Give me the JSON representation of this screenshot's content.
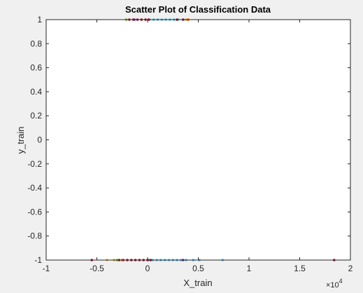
{
  "chart_data": {
    "type": "scatter",
    "title": "Scatter Plot of Classification Data",
    "xlabel": "X_train",
    "ylabel": "y_train",
    "x_multiplier_label": "×10",
    "x_multiplier_exponent": "4",
    "xlim": [
      -10000,
      20000
    ],
    "ylim": [
      -1,
      1
    ],
    "x_ticks": [
      -10000,
      -5000,
      0,
      5000,
      10000,
      15000,
      20000
    ],
    "x_tick_labels": [
      "-1",
      "-0.5",
      "0",
      "0.5",
      "1",
      "1.5",
      "2"
    ],
    "y_ticks": [
      1,
      0.8,
      0.6,
      0.4,
      0.2,
      0,
      -0.2,
      -0.4,
      -0.6,
      -0.8,
      -1
    ],
    "y_tick_labels": [
      "1",
      "0.8",
      "0.6",
      "0.4",
      "0.2",
      "0",
      "-0.2",
      "-0.4",
      "-0.6",
      "-0.8",
      "-1"
    ],
    "grid": false,
    "series": [
      {
        "color": "#4dbeee",
        "points": [
          {
            "x": 200,
            "y": 1
          },
          {
            "x": 600,
            "y": 1
          },
          {
            "x": 1000,
            "y": 1
          },
          {
            "x": 1400,
            "y": 1
          },
          {
            "x": 1800,
            "y": 1
          },
          {
            "x": 2200,
            "y": 1
          },
          {
            "x": 2600,
            "y": 1
          },
          {
            "x": 3000,
            "y": 1
          },
          {
            "x": 100,
            "y": -1
          },
          {
            "x": 500,
            "y": -1
          },
          {
            "x": 900,
            "y": -1
          },
          {
            "x": 1300,
            "y": -1
          },
          {
            "x": 1700,
            "y": -1
          },
          {
            "x": 2100,
            "y": -1
          },
          {
            "x": 2500,
            "y": -1
          },
          {
            "x": 2900,
            "y": -1
          },
          {
            "x": 3300,
            "y": -1
          },
          {
            "x": 3800,
            "y": -1
          },
          {
            "x": 4500,
            "y": -1
          },
          {
            "x": 5100,
            "y": -1
          },
          {
            "x": 7400,
            "y": -1
          }
        ]
      },
      {
        "color": "#a2142f",
        "points": [
          {
            "x": -1800,
            "y": 1
          },
          {
            "x": -1400,
            "y": 1
          },
          {
            "x": -1000,
            "y": 1
          },
          {
            "x": -600,
            "y": 1
          },
          {
            "x": -200,
            "y": 1
          },
          {
            "x": 100,
            "y": 1
          },
          {
            "x": 2900,
            "y": 1
          },
          {
            "x": 3500,
            "y": 1
          },
          {
            "x": -5500,
            "y": -1
          },
          {
            "x": -2800,
            "y": -1
          },
          {
            "x": -2400,
            "y": -1
          },
          {
            "x": -2000,
            "y": -1
          },
          {
            "x": -1600,
            "y": -1
          },
          {
            "x": -1200,
            "y": -1
          },
          {
            "x": -800,
            "y": -1
          },
          {
            "x": -400,
            "y": -1
          },
          {
            "x": 0,
            "y": -1
          },
          {
            "x": 300,
            "y": -1
          },
          {
            "x": 18400,
            "y": -1
          }
        ]
      },
      {
        "color": "#77ac30",
        "points": [
          {
            "x": -2100,
            "y": 1
          },
          {
            "x": -3000,
            "y": -1
          }
        ]
      },
      {
        "color": "#edb120",
        "points": [
          {
            "x": 3800,
            "y": 1
          },
          {
            "x": -4000,
            "y": -1
          },
          {
            "x": -3300,
            "y": -1
          }
        ]
      },
      {
        "color": "#7e2f8e",
        "points": [
          {
            "x": -1300,
            "y": 1
          },
          {
            "x": 3500,
            "y": -1
          }
        ]
      },
      {
        "color": "#d95319",
        "points": [
          {
            "x": -2500,
            "y": -1
          },
          {
            "x": 4000,
            "y": 1
          }
        ]
      }
    ]
  }
}
